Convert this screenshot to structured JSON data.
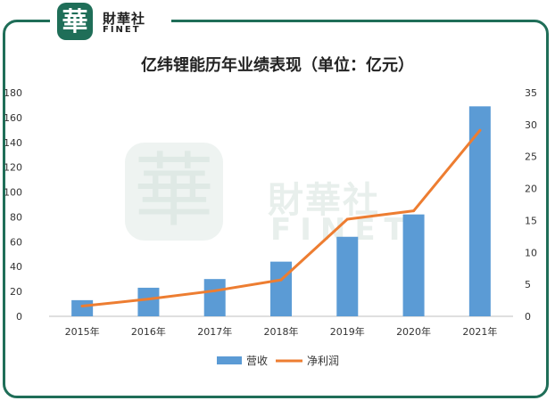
{
  "brand": {
    "logo_glyph": "華",
    "name_cn": "財華社",
    "name_en": "FINET"
  },
  "colors": {
    "frame": "#1f6e58",
    "bar": "#5b9bd5",
    "line": "#ed7d31"
  },
  "chart_data": {
    "type": "bar",
    "title": "亿纬锂能历年业绩表现（单位：亿元）",
    "categories": [
      "2015年",
      "2016年",
      "2017年",
      "2018年",
      "2019年",
      "2020年",
      "2021年"
    ],
    "series": [
      {
        "name": "营收",
        "type": "bar",
        "axis": "left",
        "values": [
          13,
          23,
          30,
          44,
          64,
          82,
          169
        ]
      },
      {
        "name": "净利润",
        "type": "line",
        "axis": "right",
        "values": [
          1.6,
          2.7,
          4.0,
          5.7,
          15.2,
          16.5,
          29.1
        ]
      }
    ],
    "y_left": {
      "min": 0,
      "max": 180,
      "ticks": [
        0,
        20,
        40,
        60,
        80,
        100,
        120,
        140,
        160,
        180
      ]
    },
    "y_right": {
      "min": 0,
      "max": 35,
      "ticks": [
        0,
        5,
        10,
        15,
        20,
        25,
        30,
        35
      ]
    },
    "grid": false,
    "legend_position": "bottom"
  }
}
